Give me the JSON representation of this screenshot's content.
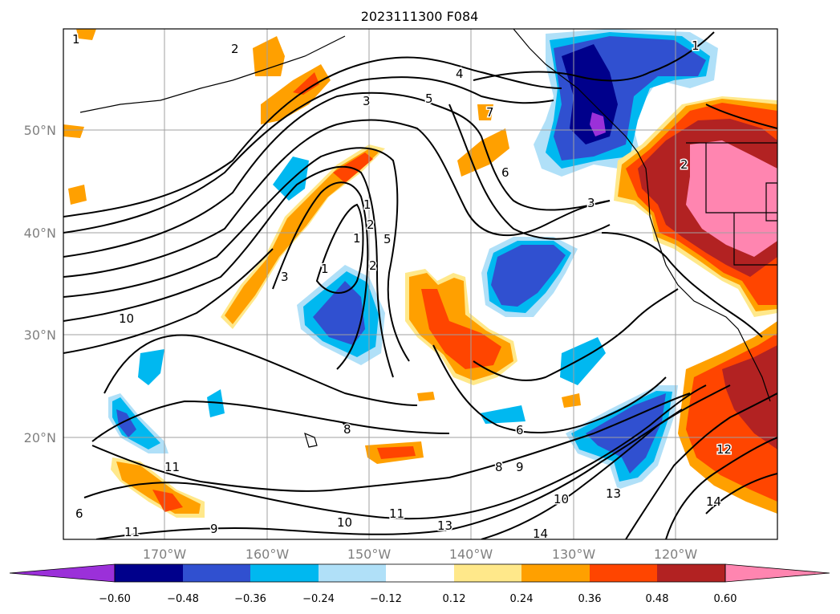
{
  "title": "2023111300 F084",
  "map": {
    "lat_labels": [
      "50°N",
      "40°N",
      "30°N",
      "20°N"
    ],
    "lon_labels": [
      "170°W",
      "160°W",
      "150°W",
      "140°W",
      "130°W",
      "120°W"
    ],
    "contour_labels": [
      "1",
      "2",
      "3",
      "4",
      "5",
      "6",
      "7",
      "1",
      "2",
      "1",
      "5",
      "1",
      "3",
      "2",
      "3",
      "10",
      "6",
      "8",
      "9",
      "10",
      "11",
      "13",
      "13",
      "14",
      "11",
      "11",
      "9",
      "10",
      "6",
      "12",
      "14",
      "2",
      "1",
      "8"
    ]
  },
  "colorbar": {
    "ticks": [
      "−0.60",
      "−0.48",
      "−0.36",
      "−0.24",
      "−0.12",
      "0.12",
      "0.24",
      "0.36",
      "0.48",
      "0.60"
    ],
    "colors": [
      "#9b30d9",
      "#00008b",
      "#3050d0",
      "#00b8f0",
      "#b0e0f8",
      "#ffffff",
      "#ffe88a",
      "#ffa000",
      "#ff4500",
      "#b22222",
      "#ff85b0"
    ]
  }
}
